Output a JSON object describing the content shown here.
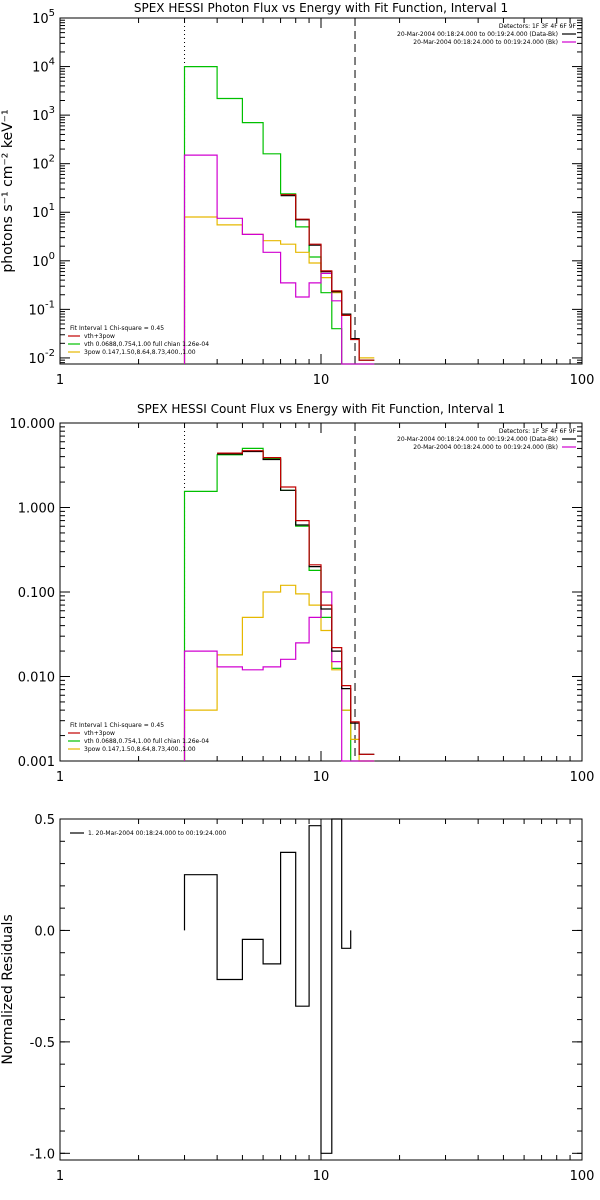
{
  "chart_data": [
    {
      "type": "line",
      "title": "SPEX HESSI Photon Flux vs Energy with Fit Function, Interval 1",
      "ylabel": "photons s⁻¹ cm⁻² keV⁻¹",
      "xlabel": "",
      "xscale": "log",
      "yscale": "log",
      "xlim": [
        1,
        100
      ],
      "ylim": [
        0.0075,
        100000
      ],
      "xticks": [
        {
          "v": 1,
          "label": "1"
        },
        {
          "v": 10,
          "label": "10"
        },
        {
          "v": 100,
          "label": "100"
        }
      ],
      "yticks": [
        {
          "v": 0.01,
          "base": "10",
          "exp": "-2"
        },
        {
          "v": 0.1,
          "base": "10",
          "exp": "-1"
        },
        {
          "v": 1,
          "base": "10",
          "exp": "0"
        },
        {
          "v": 10,
          "base": "10",
          "exp": "1"
        },
        {
          "v": 100,
          "base": "10",
          "exp": "2"
        },
        {
          "v": 1000,
          "base": "10",
          "exp": "3"
        },
        {
          "v": 10000,
          "base": "10",
          "exp": "4"
        },
        {
          "v": 100000,
          "base": "10",
          "exp": "5"
        }
      ],
      "vlines": [
        {
          "x": 3.0,
          "style": "dotted"
        },
        {
          "x": 13.5,
          "style": "dashed"
        }
      ],
      "legend_top_right": [
        {
          "text": "Detectors: 1F 3F 4F 6F 9F",
          "color": "#000000",
          "line": false
        },
        {
          "text": "20-Mar-2004 00:18:24.000 to 00:19:24.000 (Data-Bk)",
          "color": "#000000",
          "line": true
        },
        {
          "text": "20-Mar-2004 00:18:24.000 to 00:19:24.000 (Bk)",
          "color": "#d000d0",
          "line": true
        }
      ],
      "legend_bottom_left": [
        {
          "text": "Fit Interval 1    Chi-square = 0.45",
          "color": "#000000",
          "line": false
        },
        {
          "text": "vth+3pow",
          "color": "#c00000",
          "line": true
        },
        {
          "text": "vth 0.0688,0.754,1.00  full chian 1.26e-04",
          "color": "#00c000",
          "line": true
        },
        {
          "text": "3pow 0.147,1.50,8.64,8.73,400.,1.00",
          "color": "#e6b800",
          "line": true
        }
      ],
      "bin_edges": [
        3.0,
        4.0,
        5.0,
        6.0,
        7.0,
        8.0,
        9.0,
        10.0,
        11.0,
        12.0,
        13.0,
        14.0,
        16.0
      ],
      "series": [
        {
          "name": "vth 0.0688,0.754,1.00  full chian 1.26e-04",
          "color": "#00c000",
          "values": [
            10000,
            2200,
            700,
            160,
            24,
            5,
            1.2,
            0.22,
            0.04,
            0.0075,
            0.0075,
            0.0075
          ]
        },
        {
          "name": "3pow 0.147,1.50,8.64,8.73,400.,1.00",
          "color": "#e6b800",
          "values": [
            8,
            5.5,
            3.5,
            2.6,
            2.2,
            1.5,
            0.9,
            0.45,
            0.22,
            0.08,
            0.025,
            0.01
          ]
        },
        {
          "name": "20-Mar-2004 00:18:24.000 to 00:19:24.000 (Bk)",
          "color": "#d000d0",
          "values": [
            150,
            7.5,
            3.5,
            1.5,
            0.35,
            0.18,
            0.35,
            0.55,
            0.15,
            0.0075,
            0.0075,
            0.0075
          ]
        },
        {
          "name": "20-Mar-2004 00:18:24.000 to 00:19:24.000 (Data-Bk)",
          "color": "#000000",
          "values": [
            null,
            null,
            null,
            null,
            22,
            7,
            2.1,
            0.6,
            0.23,
            0.08,
            0.025,
            0.009
          ]
        },
        {
          "name": "vth+3pow",
          "color": "#c00000",
          "values": [
            null,
            null,
            null,
            null,
            23,
            7.2,
            2.2,
            0.62,
            0.24,
            0.075,
            0.024,
            0.009
          ]
        }
      ]
    },
    {
      "type": "line",
      "title": "SPEX HESSI Count Flux vs Energy with Fit Function, Interval 1",
      "ylabel": "",
      "xlabel": "",
      "xscale": "log",
      "yscale": "log",
      "xlim": [
        1,
        100
      ],
      "ylim": [
        0.001,
        10
      ],
      "xticks": [
        {
          "v": 1,
          "label": "1"
        },
        {
          "v": 10,
          "label": "10"
        },
        {
          "v": 100,
          "label": "100"
        }
      ],
      "yticks": [
        {
          "v": 0.001,
          "label": "0.001"
        },
        {
          "v": 0.01,
          "label": "0.010"
        },
        {
          "v": 0.1,
          "label": "0.100"
        },
        {
          "v": 1,
          "label": "1.000"
        },
        {
          "v": 10,
          "label": "10.000"
        }
      ],
      "vlines": [
        {
          "x": 3.0,
          "style": "dotted"
        },
        {
          "x": 13.5,
          "style": "dashed"
        }
      ],
      "legend_top_right": [
        {
          "text": "Detectors: 1F 3F 4F 6F 9F",
          "color": "#000000",
          "line": false
        },
        {
          "text": "20-Mar-2004 00:18:24.000 to 00:19:24.000 (Data-Bk)",
          "color": "#000000",
          "line": true
        },
        {
          "text": "20-Mar-2004 00:18:24.000 to 00:19:24.000 (Bk)",
          "color": "#d000d0",
          "line": true
        }
      ],
      "legend_bottom_left": [
        {
          "text": "Fit Interval 1    Chi-square = 0.45",
          "color": "#000000",
          "line": false
        },
        {
          "text": "vth+3pow",
          "color": "#c00000",
          "line": true
        },
        {
          "text": "vth 0.0688,0.754,1.00  full chian 1.26e-04",
          "color": "#00c000",
          "line": true
        },
        {
          "text": "3pow 0.147,1.50,8.64,8.73,400.,1.00",
          "color": "#e6b800",
          "line": true
        }
      ],
      "bin_edges": [
        3.0,
        4.0,
        5.0,
        6.0,
        7.0,
        8.0,
        9.0,
        10.0,
        11.0,
        12.0,
        13.0,
        14.0,
        16.0
      ],
      "series": [
        {
          "name": "vth 0.0688,0.754,1.00  full chian 1.26e-04",
          "color": "#00c000",
          "values": [
            1.55,
            4.2,
            5.0,
            3.8,
            1.6,
            0.6,
            0.18,
            0.05,
            0.0125,
            0.004,
            0.001,
            0.001
          ]
        },
        {
          "name": "3pow 0.147,1.50,8.64,8.73,400.,1.00",
          "color": "#e6b800",
          "values": [
            0.004,
            0.018,
            0.05,
            0.1,
            0.12,
            0.095,
            0.07,
            0.035,
            0.012,
            0.004,
            0.0018,
            0.001
          ]
        },
        {
          "name": "20-Mar-2004 00:18:24.000 to 00:19:24.000 (Bk)",
          "color": "#d000d0",
          "values": [
            0.02,
            0.013,
            0.012,
            0.013,
            0.016,
            0.025,
            0.05,
            0.1,
            0.015,
            0.001,
            0.001,
            0.001
          ]
        },
        {
          "name": "20-Mar-2004 00:18:24.000 to 00:19:24.000 (Data-Bk)",
          "color": "#000000",
          "values": [
            null,
            4.3,
            4.6,
            3.7,
            1.6,
            0.62,
            0.2,
            0.063,
            0.02,
            0.0072,
            0.0028,
            0.0012
          ]
        },
        {
          "name": "vth+3pow",
          "color": "#c00000",
          "values": [
            null,
            4.4,
            4.7,
            3.9,
            1.75,
            0.7,
            0.21,
            0.07,
            0.022,
            0.0078,
            0.0029,
            0.0012
          ]
        }
      ]
    },
    {
      "type": "line",
      "title": "",
      "ylabel": "Normalized Residuals",
      "xlabel": "",
      "xscale": "log",
      "yscale": "linear",
      "xlim": [
        1,
        100
      ],
      "ylim": [
        -1.03,
        0.5
      ],
      "xticks": [
        {
          "v": 1,
          "label": "1"
        },
        {
          "v": 10,
          "label": "10"
        },
        {
          "v": 100,
          "label": "100"
        }
      ],
      "yticks": [
        {
          "v": 0.5,
          "label": "0.5"
        },
        {
          "v": 0.0,
          "label": "0.0"
        },
        {
          "v": -0.5,
          "label": "-0.5"
        },
        {
          "v": -1.0,
          "label": "-1.0"
        }
      ],
      "vlines": [],
      "legend_top_left": [
        {
          "text": "1. 20-Mar-2004 00:18:24.000 to 00:19:24.000",
          "color": "#000000",
          "line": true
        }
      ],
      "bin_edges": [
        3.0,
        4.0,
        5.0,
        6.0,
        7.0,
        8.0,
        9.0,
        10.0,
        11.0,
        12.0,
        13.0
      ],
      "series": [
        {
          "name": "1. 20-Mar-2004 00:18:24.000 to 00:19:24.000",
          "color": "#000000",
          "values": [
            0.25,
            -0.22,
            -0.04,
            -0.15,
            0.35,
            -0.34,
            0.47,
            -1.0,
            0.5,
            -0.08
          ]
        }
      ]
    }
  ]
}
